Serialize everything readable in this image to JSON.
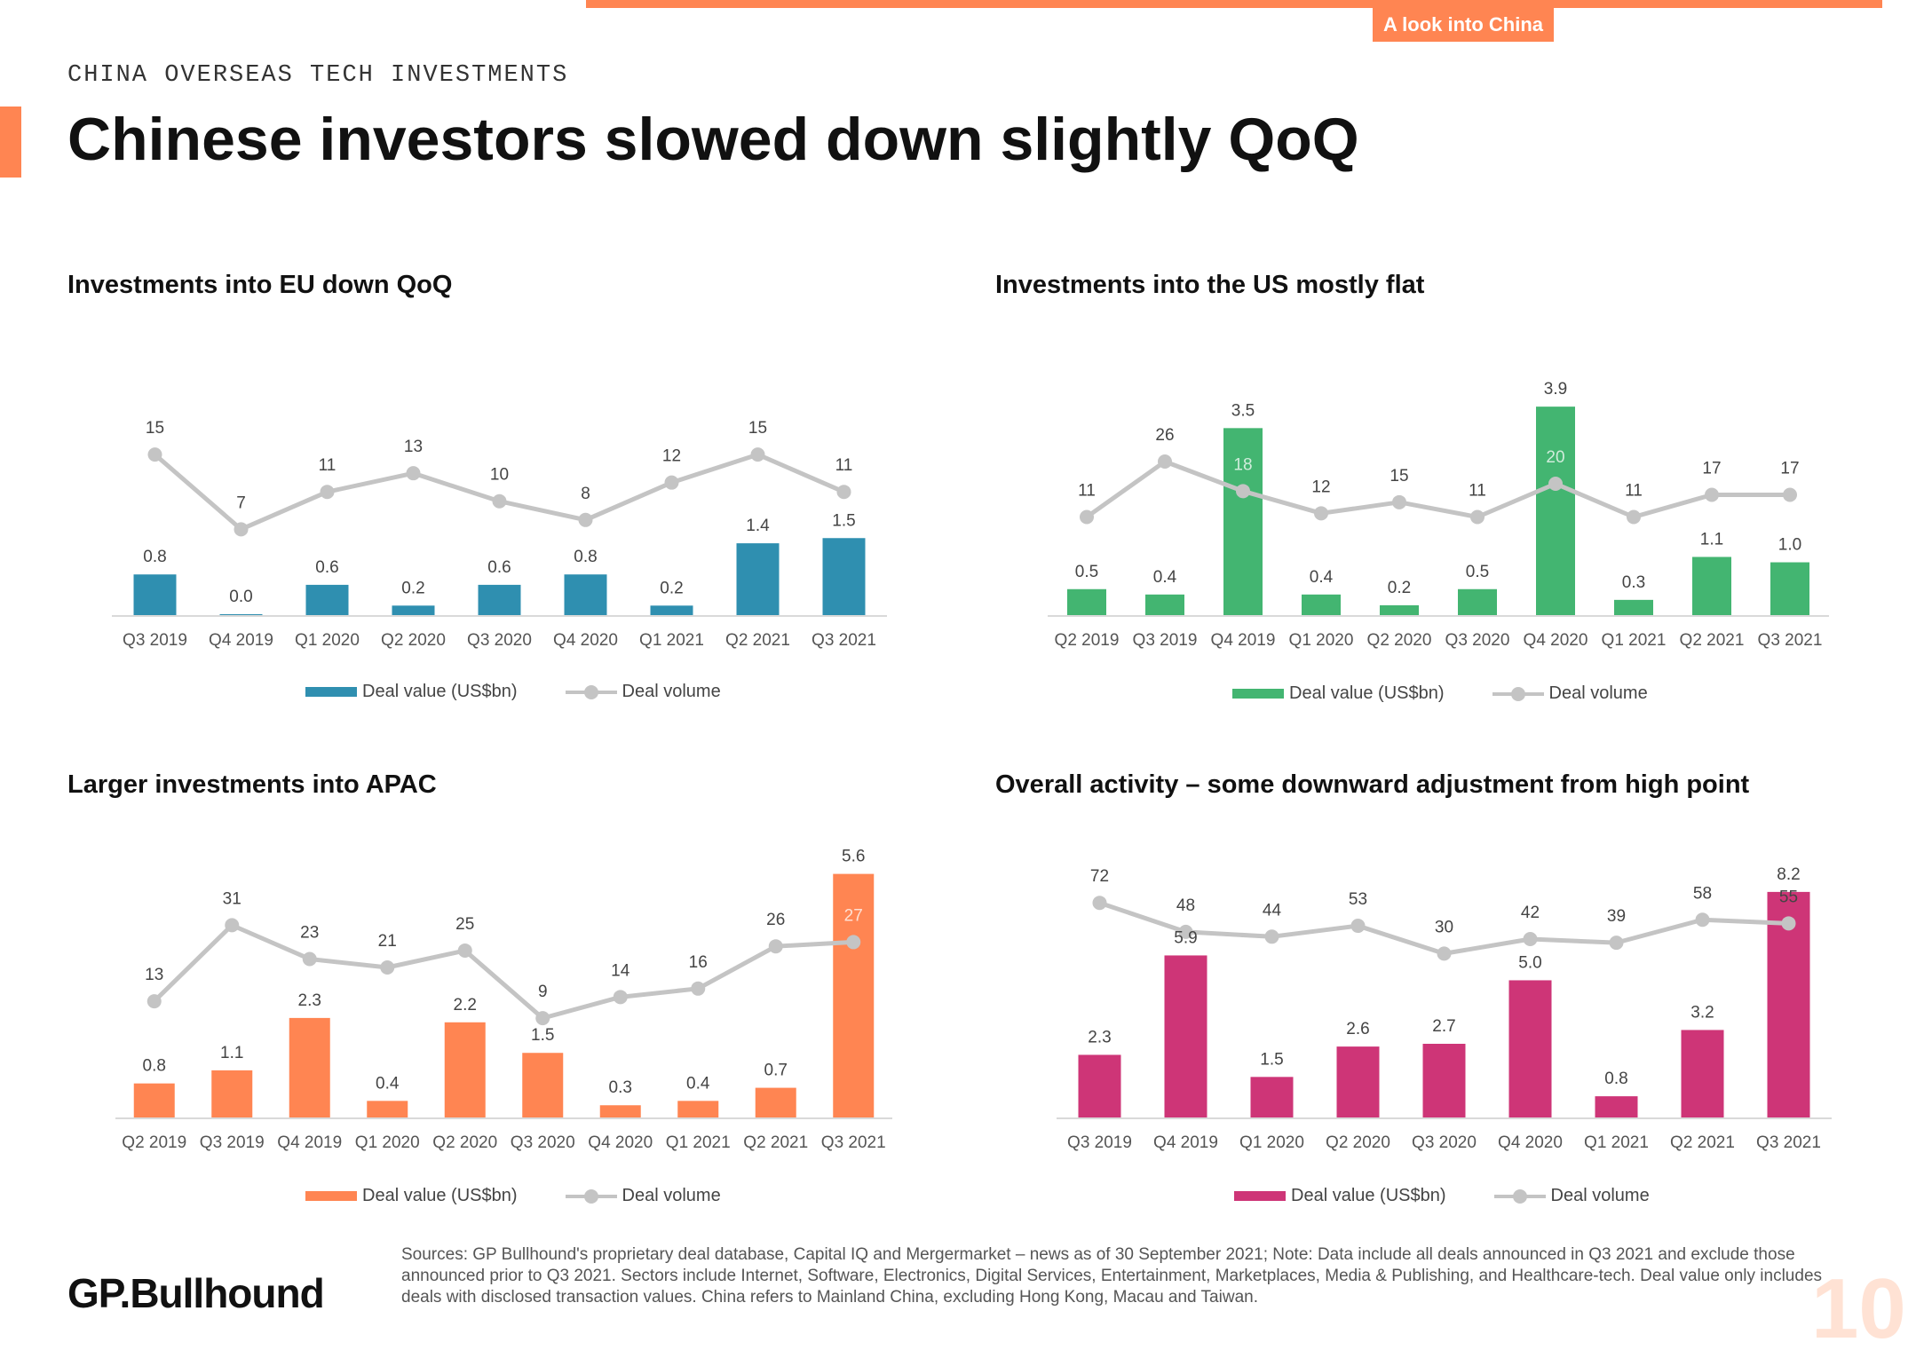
{
  "header": {
    "tag": "A look into China",
    "kicker": "CHINA OVERSEAS TECH INVESTMENTS",
    "title": "Chinese investors slowed down slightly QoQ"
  },
  "footer": {
    "logo": "GP.Bullhound",
    "sources": "Sources: GP Bullhound's proprietary deal database, Capital IQ and Mergermarket – news as of 30 September 2021; Note: Data include all deals announced in Q3 2021 and exclude those announced prior to Q3 2021. Sectors include Internet, Software, Electronics, Digital Services, Entertainment, Marketplaces, Media & Publishing, and Healthcare-tech. Deal value only includes deals with disclosed transaction values. China refers to Mainland China, excluding Hong Kong, Macau and Taiwan.",
    "page_number": "10"
  },
  "colors": {
    "accent": "#FF8552",
    "line": "#C4C4C4"
  },
  "chart_data": [
    {
      "type": "bar",
      "title": "Investments into EU down QoQ",
      "categories": [
        "Q3 2019",
        "Q4 2019",
        "Q1 2020",
        "Q2 2020",
        "Q3 2020",
        "Q4 2020",
        "Q1 2021",
        "Q2 2021",
        "Q3 2021"
      ],
      "series": [
        {
          "name": "Deal value (US$bn)",
          "type": "bar",
          "color": "#2F8FB0",
          "values": [
            0.8,
            0.0,
            0.6,
            0.2,
            0.6,
            0.8,
            0.2,
            1.4,
            1.5
          ]
        },
        {
          "name": "Deal volume",
          "type": "line",
          "color": "#C4C4C4",
          "values": [
            15,
            7,
            11,
            13,
            10,
            8,
            12,
            15,
            11
          ]
        }
      ],
      "bar_max": 4.0,
      "line_range": [
        0,
        19
      ],
      "legend": [
        "Deal value (US$bn)",
        "Deal volume"
      ]
    },
    {
      "type": "bar",
      "title": "Investments into the US mostly flat",
      "categories": [
        "Q2 2019",
        "Q3 2019",
        "Q4 2019",
        "Q1 2020",
        "Q2 2020",
        "Q3 2020",
        "Q4 2020",
        "Q1 2021",
        "Q2 2021",
        "Q3 2021"
      ],
      "series": [
        {
          "name": "Deal value (US$bn)",
          "type": "bar",
          "color": "#43B571",
          "values": [
            0.5,
            0.4,
            3.5,
            0.4,
            0.2,
            0.5,
            3.9,
            0.3,
            1.1,
            1.0
          ]
        },
        {
          "name": "Deal volume",
          "type": "line",
          "color": "#C4C4C4",
          "values": [
            11,
            26,
            18,
            12,
            15,
            11,
            20,
            11,
            17,
            17
          ]
        }
      ],
      "bar_max": 4.2,
      "line_range": [
        -10,
        38
      ],
      "legend": [
        "Deal value (US$bn)",
        "Deal volume"
      ]
    },
    {
      "type": "bar",
      "title": "Larger investments into APAC",
      "categories": [
        "Q2 2019",
        "Q3 2019",
        "Q4 2019",
        "Q1 2020",
        "Q2 2020",
        "Q3 2020",
        "Q4 2020",
        "Q1 2021",
        "Q2 2021",
        "Q3 2021"
      ],
      "series": [
        {
          "name": "Deal value (US$bn)",
          "type": "bar",
          "color": "#FF8552",
          "values": [
            0.8,
            1.1,
            2.3,
            0.4,
            2.2,
            1.5,
            0.3,
            0.4,
            0.7,
            5.6
          ]
        },
        {
          "name": "Deal volume",
          "type": "line",
          "color": "#C4C4C4",
          "values": [
            13,
            31,
            23,
            21,
            25,
            9,
            14,
            16,
            26,
            27
          ]
        }
      ],
      "bar_max": 6.1,
      "line_range": [
        0,
        42
      ],
      "legend": [
        "Deal value (US$bn)",
        "Deal volume"
      ]
    },
    {
      "type": "bar",
      "title": "Overall activity – some downward adjustment from high point",
      "categories": [
        "Q3 2019",
        "Q4 2019",
        "Q1 2020",
        "Q2 2020",
        "Q3 2020",
        "Q4 2020",
        "Q1 2021",
        "Q2 2021",
        "Q3 2021"
      ],
      "series": [
        {
          "name": "Deal value (US$bn)",
          "type": "bar",
          "color": "#CE3577",
          "values": [
            2.3,
            5.9,
            1.5,
            2.6,
            2.7,
            5.0,
            0.8,
            3.2,
            8.2
          ]
        },
        {
          "name": "Deal volume",
          "type": "line",
          "color": "#C4C4C4",
          "values": [
            72,
            48,
            44,
            53,
            30,
            42,
            39,
            58,
            55
          ]
        }
      ],
      "bar_max": 9.0,
      "line_range": [
        -55,
        92
      ],
      "legend": [
        "Deal value (US$bn)",
        "Deal volume"
      ]
    }
  ]
}
